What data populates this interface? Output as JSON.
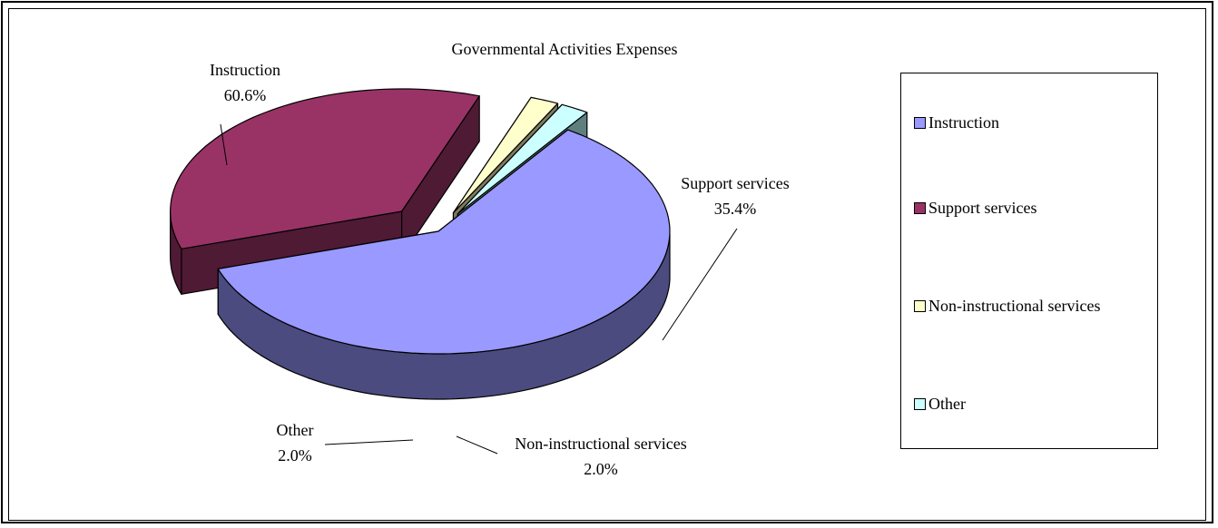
{
  "chart_data": {
    "type": "pie",
    "title": "Governmental Activities Expenses",
    "series": [
      {
        "name": "Instruction",
        "value": 60.6,
        "label": "60.6%",
        "color": "#9999ff",
        "side_color": "#4b4b80"
      },
      {
        "name": "Support services",
        "value": 35.4,
        "label": "35.4%",
        "color": "#993366",
        "side_color": "#4f1a34"
      },
      {
        "name": "Non-instructional services",
        "value": 2.0,
        "label": "2.0%",
        "color": "#ffffcc",
        "side_color": "#7f7a5e"
      },
      {
        "name": "Other",
        "value": 2.0,
        "label": "2.0%",
        "color": "#ccffff",
        "side_color": "#5f7f7f"
      }
    ],
    "legend_position": "right",
    "exploded": true,
    "three_d": true
  }
}
